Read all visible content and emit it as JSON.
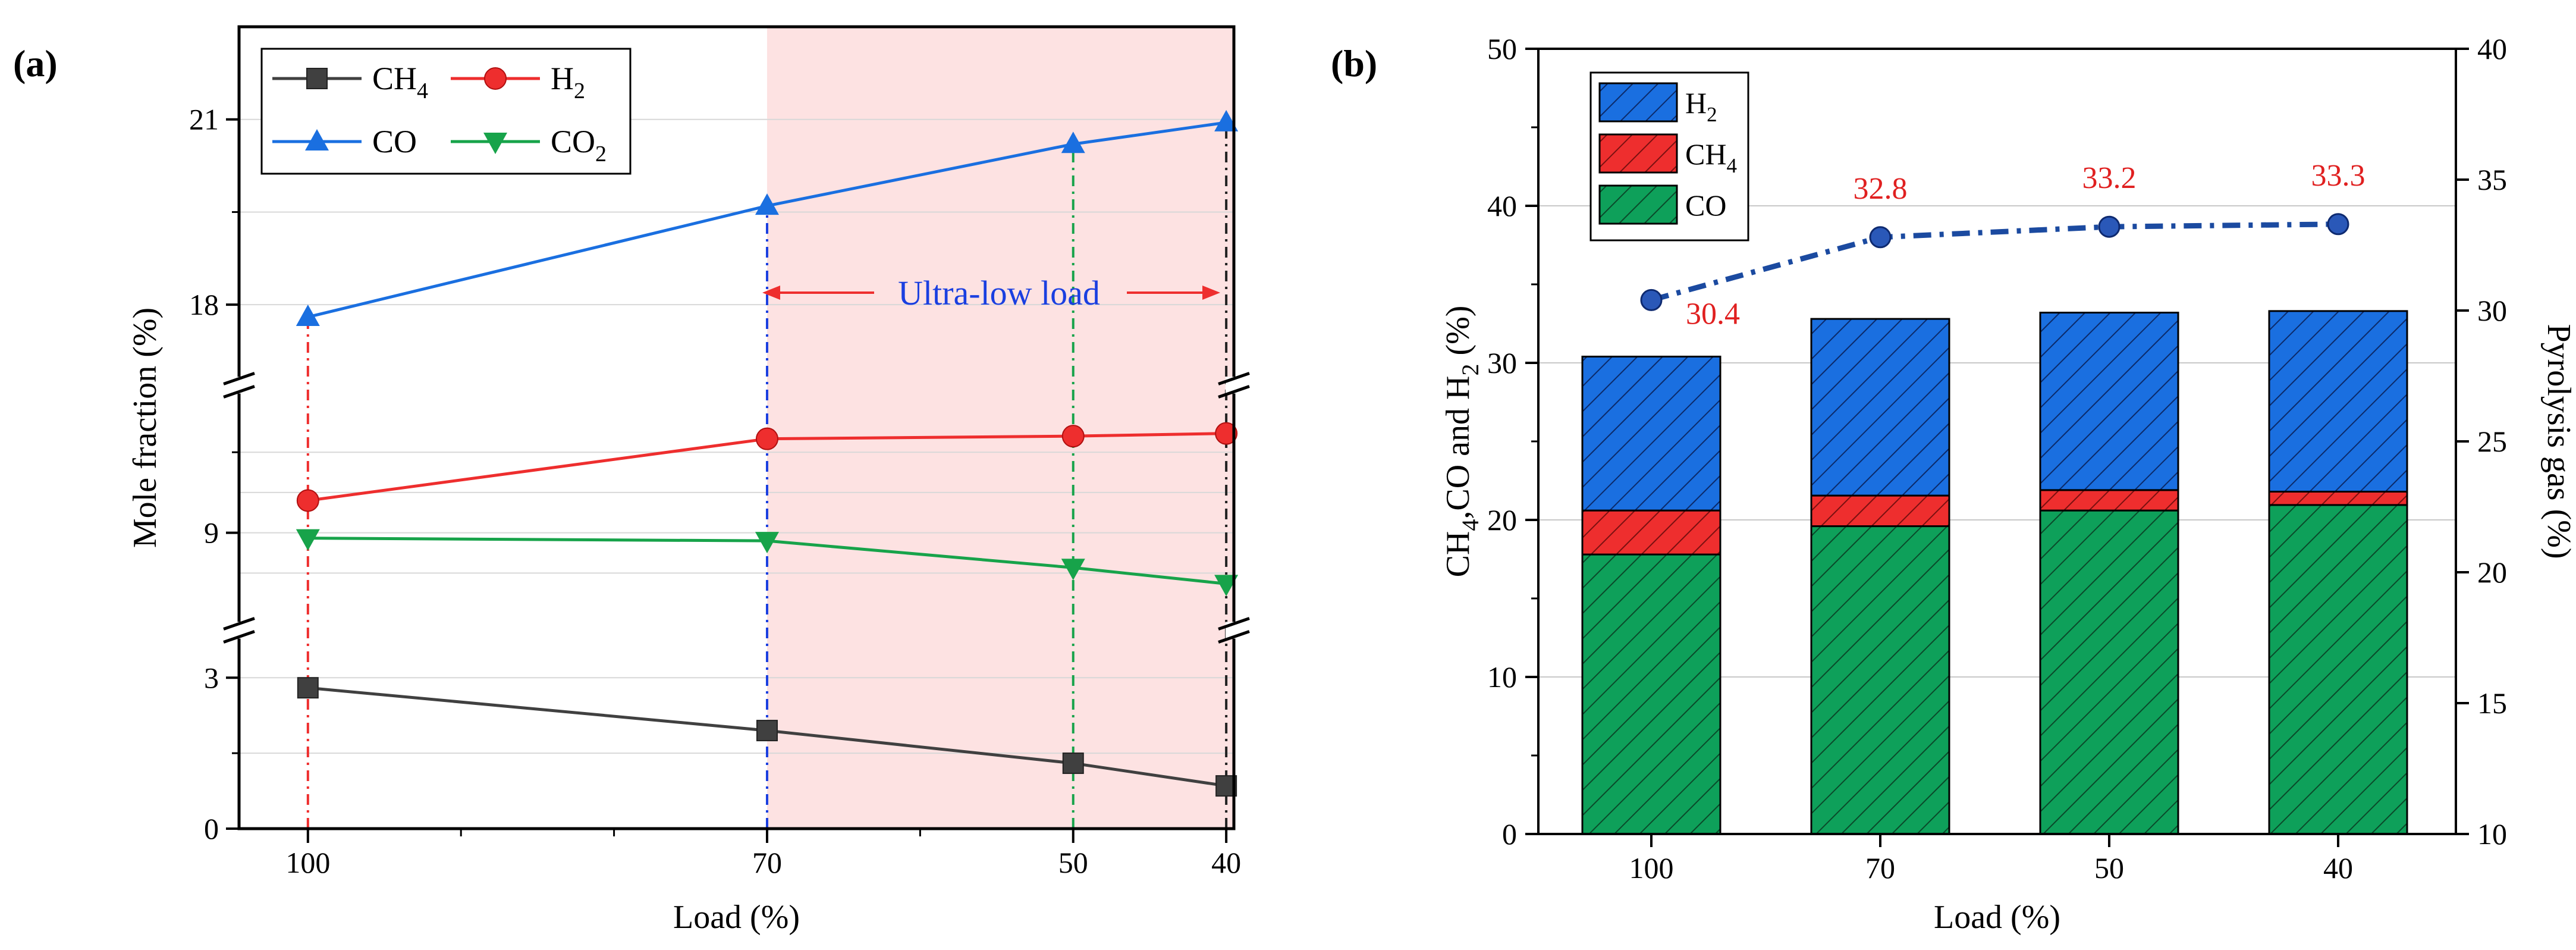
{
  "panel_a": {
    "label": "(a)",
    "annotation": "Ultra-low load",
    "colors": {
      "CH4": "#404040",
      "H2": "#ee2e2e",
      "CO": "#1a6fe0",
      "CO2": "#17a34a",
      "shade": "#fde2e2"
    },
    "legend": [
      {
        "key": "CH4",
        "base": "CH",
        "sub": "4"
      },
      {
        "key": "H2",
        "base": "H",
        "sub": "2"
      },
      {
        "key": "CO",
        "base": "CO",
        "sub": ""
      },
      {
        "key": "CO2",
        "base": "CO",
        "sub": "2"
      }
    ]
  },
  "panel_b": {
    "label": "(b)",
    "ylabel_left_parts": [
      "CH",
      "4",
      ",CO and H",
      "2",
      " (%)"
    ],
    "legend": [
      {
        "key": "H2",
        "base": "H",
        "sub": "2"
      },
      {
        "key": "CH4",
        "base": "CH",
        "sub": "4"
      },
      {
        "key": "CO",
        "base": "CO",
        "sub": ""
      }
    ],
    "colors": {
      "H2": "#1a6fe0",
      "CH4": "#ee2e2e",
      "CO": "#0ea05a",
      "line": "#1b4aa0",
      "label": "#e02020"
    }
  },
  "chart_data": [
    {
      "id": "a",
      "type": "line",
      "title": "",
      "xlabel": "Load (%)",
      "ylabel": "Mole fraction (%)",
      "categories": [
        "100",
        "70",
        "50",
        "40"
      ],
      "x": [
        100,
        70,
        50,
        40
      ],
      "xlim": [
        104.5,
        39.5
      ],
      "y_broken_axis": true,
      "y_segments": [
        [
          0,
          3.5
        ],
        [
          7.6,
          11.4
        ],
        [
          17,
          22.5
        ]
      ],
      "yticks": [
        0,
        3,
        9,
        18,
        21
      ],
      "series": [
        {
          "name": "CH4",
          "marker": "square",
          "values": [
            2.8,
            1.95,
            1.3,
            0.85
          ]
        },
        {
          "name": "H2",
          "marker": "circle",
          "values": [
            9.6,
            10.75,
            10.8,
            10.85
          ]
        },
        {
          "name": "CO",
          "marker": "triangle-up",
          "values": [
            17.8,
            19.6,
            20.6,
            20.95
          ]
        },
        {
          "name": "CO2",
          "marker": "triangle-down",
          "values": [
            8.9,
            8.85,
            8.35,
            8.05
          ]
        }
      ],
      "shaded_region_x": [
        70,
        39.5
      ],
      "annotation": "Ultra-low load",
      "legend_position": "top-left",
      "grid": true
    },
    {
      "id": "b",
      "type": "bar",
      "stacked": true,
      "title": "",
      "xlabel": "Load (%)",
      "ylabel": "CH4,CO and H2 (%)",
      "ylabel_right": "Pyrolysis gas (%)",
      "categories": [
        "100",
        "70",
        "50",
        "40"
      ],
      "ylim": [
        0,
        50
      ],
      "ylim_right": [
        10,
        40
      ],
      "yticks": [
        0,
        10,
        20,
        30,
        40,
        50
      ],
      "yticks_right": [
        10,
        15,
        20,
        25,
        30,
        35,
        40
      ],
      "series": [
        {
          "name": "CO",
          "values": [
            17.8,
            19.6,
            20.6,
            20.95
          ]
        },
        {
          "name": "CH4",
          "values": [
            2.8,
            1.95,
            1.3,
            0.85
          ]
        },
        {
          "name": "H2",
          "values": [
            9.8,
            11.25,
            11.3,
            11.5
          ]
        }
      ],
      "line_series": {
        "name": "Pyrolysis gas",
        "axis": "right",
        "values": [
          30.4,
          32.8,
          33.2,
          33.3
        ],
        "labels": [
          "30.4",
          "32.8",
          "33.2",
          "33.3"
        ]
      },
      "legend_position": "top-left",
      "grid": true
    }
  ]
}
